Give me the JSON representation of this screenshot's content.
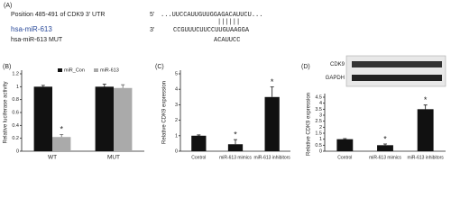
{
  "panel_a": {
    "label": "(A)",
    "position": "Position 485-491 of CDK9 3' UTR",
    "end5": "5'",
    "target": "...UUCCAUUGUUGGAGACAUUCU...",
    "mirna": "hsa-miR-613",
    "end3": "3'",
    "mirna_seq": "CCGUUUCUUCCUUGUAAGGA",
    "mut_label": "hsa-miR-613 MUT",
    "mut_seq": "ACAUUCC"
  },
  "chart_data": [
    {
      "type": "bar",
      "panel_label": "(B)",
      "y_label": "Relative luciferase activity",
      "categories": [
        "WT",
        "MUT"
      ],
      "series": [
        {
          "name": "miR_Con",
          "color": "#111111",
          "values": [
            1,
            1.0
          ],
          "errors": [
            0.02,
            0.04
          ],
          "annotations": [
            null,
            null
          ]
        },
        {
          "name": "miR-613",
          "color": "#aaaaaa",
          "values": [
            0.22,
            0.98
          ],
          "errors": [
            0.04,
            0.05
          ],
          "annotations": [
            "*",
            null
          ]
        }
      ],
      "ylim": [
        0,
        1.2
      ],
      "yticks": [
        0,
        0.2,
        0.4,
        0.6,
        0.8,
        1,
        1.2
      ]
    },
    {
      "type": "bar",
      "panel_label": "(C)",
      "y_label": "Relative CDK9 expression",
      "categories": [
        "Control",
        "miR-613 mimics",
        "miR-613 inhibitors"
      ],
      "series": [
        {
          "color": "#111111",
          "values": [
            1,
            0.45,
            3.5
          ],
          "errors": [
            0.05,
            0.3,
            0.65
          ],
          "annotations": [
            null,
            "*",
            "*"
          ]
        }
      ],
      "ylim": [
        0,
        5
      ],
      "yticks": [
        0,
        1,
        2,
        3,
        4,
        5
      ]
    },
    {
      "type": "bar",
      "panel_label": "(D)",
      "y_label": "Relative CDK9 expression",
      "categories": [
        "Control",
        "miR-613 mimics",
        "miR-613 inhibitors"
      ],
      "series": [
        {
          "color": "#111111",
          "values": [
            1,
            0.5,
            3.5
          ],
          "errors": [
            0.05,
            0.1,
            0.35
          ],
          "annotations": [
            null,
            "*",
            "*"
          ]
        }
      ],
      "ylim": [
        0,
        4.5
      ],
      "yticks": [
        0,
        0.5,
        1,
        1.5,
        2,
        2.5,
        3,
        3.5,
        4,
        4.5
      ],
      "blot_labels": [
        "CDK9",
        "GAPDH"
      ]
    }
  ]
}
